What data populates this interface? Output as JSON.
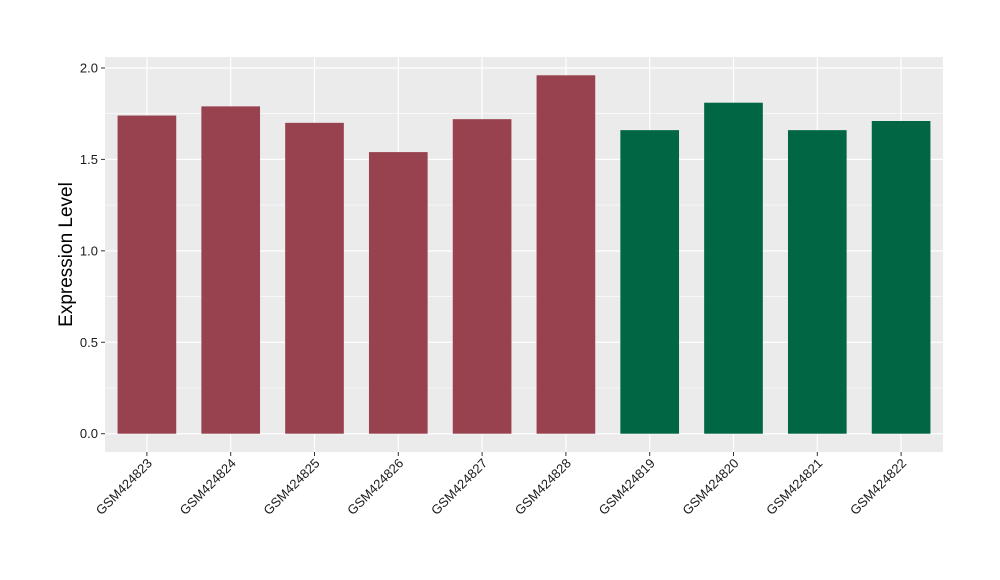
{
  "chart_data": {
    "type": "bar",
    "title": "",
    "xlabel": "",
    "ylabel": "Expression Level",
    "categories": [
      "GSM424823",
      "GSM424824",
      "GSM424825",
      "GSM424826",
      "GSM424827",
      "GSM424828",
      "GSM424819",
      "GSM424820",
      "GSM424821",
      "GSM424822"
    ],
    "values": [
      1.74,
      1.79,
      1.7,
      1.54,
      1.72,
      1.96,
      1.66,
      1.81,
      1.66,
      1.71
    ],
    "bar_colors": [
      "#99424F",
      "#99424F",
      "#99424F",
      "#99424F",
      "#99424F",
      "#99424F",
      "#006644",
      "#006644",
      "#006644",
      "#006644"
    ],
    "yticks": [
      "0.0",
      "0.5",
      "1.0",
      "1.5",
      "2.0"
    ],
    "ylim": [
      -0.1,
      2.06
    ],
    "grid": true,
    "legend": "none",
    "panel_background": "#EBEBEB",
    "grid_color": "#FFFFFF"
  }
}
